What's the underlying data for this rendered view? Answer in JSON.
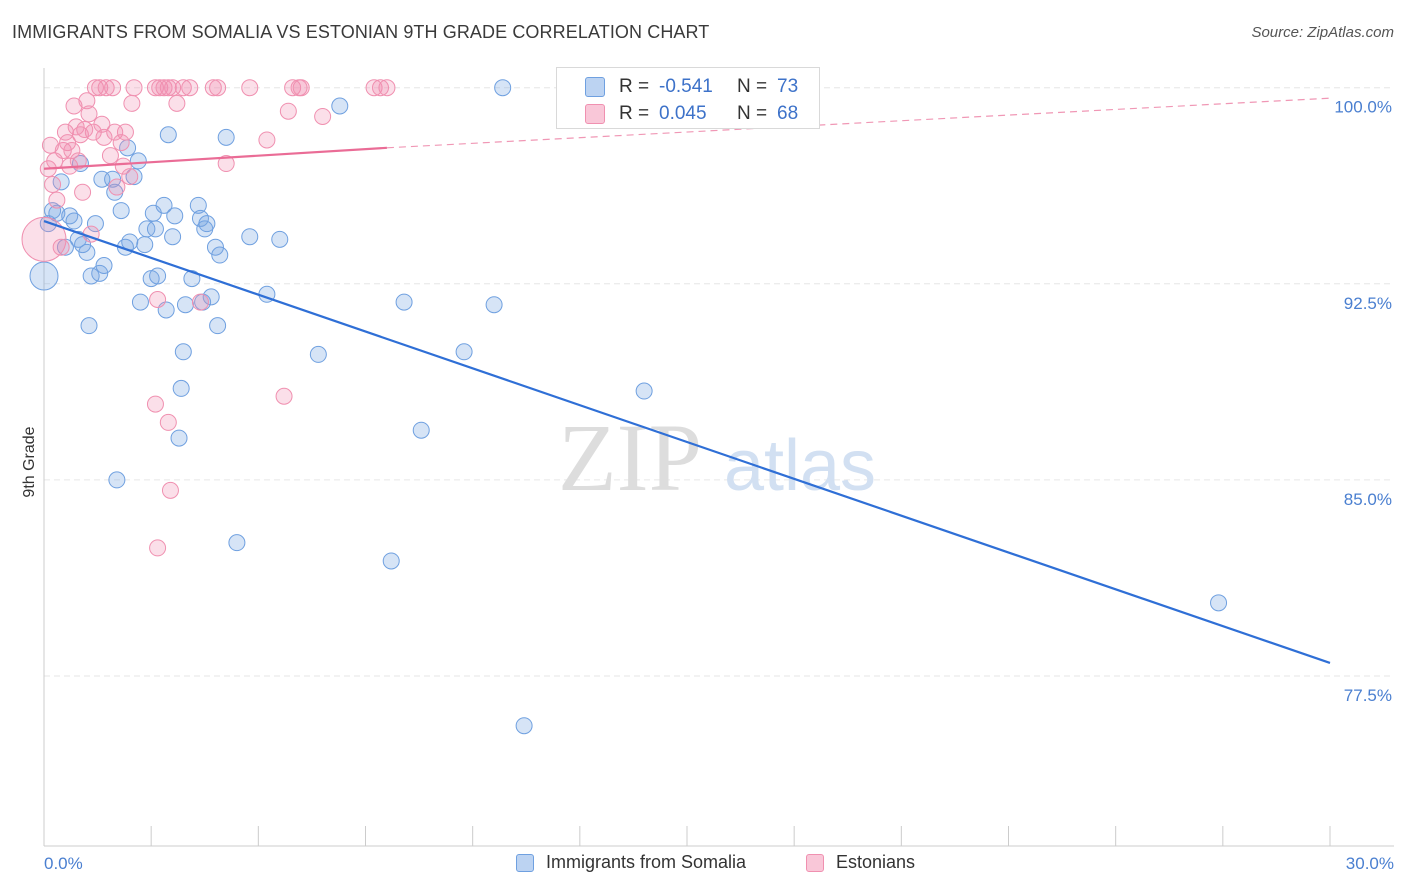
{
  "title": "IMMIGRANTS FROM SOMALIA VS ESTONIAN 9TH GRADE CORRELATION CHART",
  "source": "Source: ZipAtlas.com",
  "watermark": {
    "zip": "ZIP",
    "atlas": "atlas"
  },
  "legend_top": [
    {
      "name": "Immigrants from Somalia",
      "r_label": "R =",
      "r_value": "-0.541",
      "n_label": "N =",
      "n_value": "73",
      "color": "#6fa0e0"
    },
    {
      "name": "Estonians",
      "r_label": "R =",
      "r_value": "0.045",
      "n_label": "N =",
      "n_value": "68",
      "color": "#f090b0"
    }
  ],
  "legend_bottom": [
    {
      "label": "Immigrants from Somalia",
      "color": "#6fa0e0"
    },
    {
      "label": "Estonians",
      "color": "#f090b0"
    }
  ],
  "chart_data": {
    "type": "scatter",
    "title": "IMMIGRANTS FROM SOMALIA VS ESTONIAN 9TH GRADE CORRELATION CHART",
    "xlabel": "",
    "ylabel": "9th Grade",
    "xlim": [
      0,
      30
    ],
    "ylim": [
      71.0,
      100.6
    ],
    "x_tick_labels": [
      "0.0%",
      "30.0%"
    ],
    "y_ticks": [
      77.5,
      85.0,
      92.5,
      100.0
    ],
    "y_tick_labels": [
      "77.5%",
      "85.0%",
      "92.5%",
      "100.0%"
    ],
    "grid": true,
    "series": [
      {
        "name": "Immigrants from Somalia",
        "color": "#6fa0e0",
        "trend": {
          "x": [
            0,
            30
          ],
          "y": [
            94.9,
            78.0
          ],
          "style": "solid"
        },
        "points": [
          [
            0.0,
            92.8,
            14
          ],
          [
            0.1,
            94.8,
            8
          ],
          [
            0.2,
            95.3,
            8
          ],
          [
            0.3,
            95.2,
            8
          ],
          [
            0.4,
            96.4,
            8
          ],
          [
            0.5,
            93.9,
            8
          ],
          [
            0.6,
            95.1,
            8
          ],
          [
            0.7,
            94.9,
            8
          ],
          [
            0.8,
            94.2,
            8
          ],
          [
            0.9,
            94.0,
            8
          ],
          [
            0.85,
            97.1,
            8
          ],
          [
            1.0,
            93.7,
            8
          ],
          [
            1.05,
            90.9,
            8
          ],
          [
            1.1,
            92.8,
            8
          ],
          [
            1.2,
            94.8,
            8
          ],
          [
            1.3,
            92.9,
            8
          ],
          [
            1.4,
            93.2,
            8
          ],
          [
            1.35,
            96.5,
            8
          ],
          [
            1.6,
            96.5,
            8
          ],
          [
            1.65,
            96.0,
            8
          ],
          [
            1.7,
            85.0,
            8
          ],
          [
            1.8,
            95.3,
            8
          ],
          [
            1.9,
            93.9,
            8
          ],
          [
            1.95,
            97.7,
            8
          ],
          [
            2.0,
            94.1,
            8
          ],
          [
            2.1,
            96.6,
            8
          ],
          [
            2.2,
            97.2,
            8
          ],
          [
            2.25,
            91.8,
            8
          ],
          [
            2.35,
            94.0,
            8
          ],
          [
            2.4,
            94.6,
            8
          ],
          [
            2.5,
            92.7,
            8
          ],
          [
            2.55,
            95.2,
            8
          ],
          [
            2.6,
            94.6,
            8
          ],
          [
            2.65,
            92.8,
            8
          ],
          [
            2.8,
            95.5,
            8
          ],
          [
            2.85,
            91.5,
            8
          ],
          [
            2.9,
            98.2,
            8
          ],
          [
            3.0,
            94.3,
            8
          ],
          [
            3.05,
            95.1,
            8
          ],
          [
            3.15,
            86.6,
            8
          ],
          [
            3.2,
            88.5,
            8
          ],
          [
            3.25,
            89.9,
            8
          ],
          [
            3.3,
            91.7,
            8
          ],
          [
            3.45,
            92.7,
            8
          ],
          [
            3.6,
            95.5,
            8
          ],
          [
            3.65,
            95.0,
            8
          ],
          [
            3.7,
            91.8,
            8
          ],
          [
            3.75,
            94.6,
            8
          ],
          [
            3.8,
            94.8,
            8
          ],
          [
            3.9,
            92.0,
            8
          ],
          [
            4.0,
            93.9,
            8
          ],
          [
            4.05,
            90.9,
            8
          ],
          [
            4.1,
            93.6,
            8
          ],
          [
            4.25,
            98.1,
            8
          ],
          [
            4.5,
            82.6,
            8
          ],
          [
            4.8,
            94.3,
            8
          ],
          [
            5.2,
            92.1,
            8
          ],
          [
            5.5,
            94.2,
            8
          ],
          [
            6.4,
            89.8,
            8
          ],
          [
            6.9,
            99.3,
            8
          ],
          [
            8.1,
            81.9,
            8
          ],
          [
            8.4,
            91.8,
            8
          ],
          [
            8.8,
            86.9,
            8
          ],
          [
            9.8,
            89.9,
            8
          ],
          [
            10.5,
            91.7,
            8
          ],
          [
            10.7,
            100.0,
            8
          ],
          [
            11.2,
            75.6,
            8
          ],
          [
            14.0,
            88.4,
            8
          ],
          [
            27.4,
            80.3,
            8
          ]
        ]
      },
      {
        "name": "Estonians",
        "color": "#f090b0",
        "trend": {
          "x": [
            0,
            8
          ],
          "y": [
            96.9,
            97.7
          ],
          "style": "solid",
          "ext_x": [
            8,
            30
          ],
          "ext_y": [
            97.7,
            99.6
          ]
        },
        "points": [
          [
            0.0,
            94.2,
            22
          ],
          [
            0.1,
            96.9,
            8
          ],
          [
            0.15,
            97.8,
            8
          ],
          [
            0.2,
            96.3,
            8
          ],
          [
            0.25,
            97.2,
            8
          ],
          [
            0.3,
            95.7,
            8
          ],
          [
            0.4,
            93.9,
            8
          ],
          [
            0.45,
            97.6,
            8
          ],
          [
            0.5,
            98.3,
            8
          ],
          [
            0.55,
            97.9,
            8
          ],
          [
            0.6,
            97.0,
            8
          ],
          [
            0.65,
            97.6,
            8
          ],
          [
            0.7,
            99.3,
            8
          ],
          [
            0.75,
            98.5,
            8
          ],
          [
            0.8,
            97.2,
            8
          ],
          [
            0.85,
            98.2,
            8
          ],
          [
            0.9,
            96.0,
            8
          ],
          [
            0.95,
            98.4,
            8
          ],
          [
            1.0,
            99.5,
            8
          ],
          [
            1.05,
            99.0,
            8
          ],
          [
            1.1,
            94.4,
            8
          ],
          [
            1.15,
            98.3,
            8
          ],
          [
            1.2,
            100.0,
            8
          ],
          [
            1.3,
            100.0,
            8
          ],
          [
            1.35,
            98.6,
            8
          ],
          [
            1.4,
            98.1,
            8
          ],
          [
            1.45,
            100.0,
            8
          ],
          [
            1.55,
            97.4,
            8
          ],
          [
            1.6,
            100.0,
            8
          ],
          [
            1.65,
            98.3,
            8
          ],
          [
            1.7,
            96.2,
            8
          ],
          [
            1.8,
            97.9,
            8
          ],
          [
            1.85,
            97.0,
            8
          ],
          [
            1.9,
            98.3,
            8
          ],
          [
            2.0,
            96.6,
            8
          ],
          [
            2.05,
            99.4,
            8
          ],
          [
            2.1,
            100.0,
            8
          ],
          [
            2.6,
            100.0,
            8
          ],
          [
            2.7,
            100.0,
            8
          ],
          [
            2.8,
            100.0,
            8
          ],
          [
            2.9,
            100.0,
            8
          ],
          [
            3.0,
            100.0,
            8
          ],
          [
            2.6,
            87.9,
            8
          ],
          [
            2.65,
            91.9,
            8
          ],
          [
            2.65,
            82.4,
            8
          ],
          [
            2.9,
            87.2,
            8
          ],
          [
            2.95,
            84.6,
            8
          ],
          [
            3.1,
            99.4,
            8
          ],
          [
            3.25,
            100.0,
            8
          ],
          [
            3.4,
            100.0,
            8
          ],
          [
            3.65,
            91.8,
            8
          ],
          [
            3.95,
            100.0,
            8
          ],
          [
            4.05,
            100.0,
            8
          ],
          [
            4.25,
            97.1,
            8
          ],
          [
            4.8,
            100.0,
            8
          ],
          [
            5.2,
            98.0,
            8
          ],
          [
            5.6,
            88.2,
            8
          ],
          [
            5.7,
            99.1,
            8
          ],
          [
            5.8,
            100.0,
            8
          ],
          [
            5.95,
            100.0,
            8
          ],
          [
            6.0,
            100.0,
            8
          ],
          [
            6.5,
            98.9,
            8
          ],
          [
            7.7,
            100.0,
            8
          ],
          [
            7.85,
            100.0,
            8
          ],
          [
            8.0,
            100.0,
            8
          ]
        ]
      }
    ]
  }
}
